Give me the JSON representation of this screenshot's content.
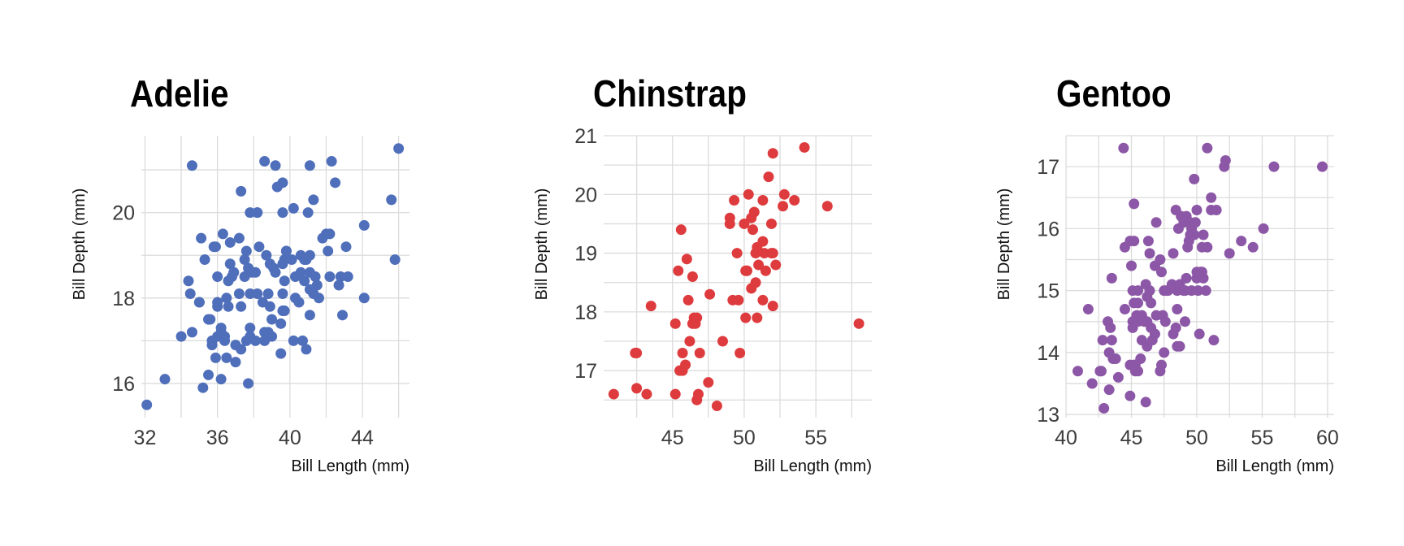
{
  "chart_data": [
    {
      "type": "scatter",
      "title": "Adelie",
      "xlabel": "Bill Length (mm)",
      "ylabel": "Bill Depth (mm)",
      "xlim": [
        31.8,
        46.6
      ],
      "ylim": [
        15.2,
        21.8
      ],
      "xticks": [
        32,
        36,
        40,
        44
      ],
      "yticks": [
        16,
        18,
        20
      ],
      "color": "#4f6fbb",
      "grid": true,
      "points": [
        [
          32.1,
          15.5
        ],
        [
          33.1,
          16.1
        ],
        [
          34.0,
          17.1
        ],
        [
          34.4,
          18.4
        ],
        [
          34.5,
          18.1
        ],
        [
          34.6,
          21.1
        ],
        [
          34.6,
          17.2
        ],
        [
          35.0,
          17.9
        ],
        [
          35.1,
          19.4
        ],
        [
          35.2,
          15.9
        ],
        [
          35.3,
          18.9
        ],
        [
          35.5,
          17.5
        ],
        [
          35.5,
          16.2
        ],
        [
          35.6,
          17.5
        ],
        [
          35.7,
          16.9
        ],
        [
          35.7,
          17.0
        ],
        [
          35.8,
          19.2
        ],
        [
          35.9,
          19.2
        ],
        [
          35.9,
          16.6
        ],
        [
          36.0,
          17.9
        ],
        [
          36.0,
          18.5
        ],
        [
          36.0,
          17.1
        ],
        [
          36.0,
          17.8
        ],
        [
          36.2,
          16.1
        ],
        [
          36.2,
          17.2
        ],
        [
          36.2,
          17.3
        ],
        [
          36.3,
          19.5
        ],
        [
          36.4,
          17.0
        ],
        [
          36.4,
          17.1
        ],
        [
          36.5,
          16.6
        ],
        [
          36.5,
          18.0
        ],
        [
          36.6,
          17.8
        ],
        [
          36.6,
          18.4
        ],
        [
          36.7,
          18.8
        ],
        [
          36.7,
          19.3
        ],
        [
          36.8,
          18.5
        ],
        [
          36.9,
          18.6
        ],
        [
          37.0,
          16.5
        ],
        [
          37.0,
          16.9
        ],
        [
          37.2,
          18.1
        ],
        [
          37.2,
          19.4
        ],
        [
          37.3,
          16.8
        ],
        [
          37.3,
          17.8
        ],
        [
          37.3,
          20.5
        ],
        [
          37.5,
          18.5
        ],
        [
          37.5,
          18.9
        ],
        [
          37.6,
          17.0
        ],
        [
          37.6,
          19.1
        ],
        [
          37.7,
          16.0
        ],
        [
          37.7,
          18.7
        ],
        [
          37.8,
          17.1
        ],
        [
          37.8,
          17.3
        ],
        [
          37.8,
          18.1
        ],
        [
          37.8,
          20.0
        ],
        [
          37.9,
          18.6
        ],
        [
          38.1,
          18.6
        ],
        [
          38.1,
          17.0
        ],
        [
          38.2,
          18.1
        ],
        [
          38.2,
          20.0
        ],
        [
          38.3,
          19.2
        ],
        [
          38.5,
          17.9
        ],
        [
          38.6,
          17.0
        ],
        [
          38.6,
          21.2
        ],
        [
          38.6,
          17.2
        ],
        [
          38.7,
          19.0
        ],
        [
          38.8,
          17.2
        ],
        [
          38.8,
          18.1
        ],
        [
          38.9,
          18.8
        ],
        [
          38.9,
          17.8
        ],
        [
          39.0,
          17.1
        ],
        [
          39.0,
          17.5
        ],
        [
          39.1,
          18.7
        ],
        [
          39.2,
          21.1
        ],
        [
          39.2,
          18.6
        ],
        [
          39.3,
          20.6
        ],
        [
          39.5,
          16.7
        ],
        [
          39.5,
          17.4
        ],
        [
          39.6,
          17.7
        ],
        [
          39.6,
          18.1
        ],
        [
          39.6,
          18.8
        ],
        [
          39.6,
          20.7
        ],
        [
          39.7,
          17.7
        ],
        [
          39.7,
          18.4
        ],
        [
          39.8,
          19.1
        ],
        [
          39.8,
          19.1
        ],
        [
          39.7,
          18.9
        ],
        [
          40.1,
          18.9
        ],
        [
          40.2,
          17.0
        ],
        [
          40.2,
          20.1
        ],
        [
          40.3,
          18.0
        ],
        [
          40.3,
          18.5
        ],
        [
          40.5,
          17.9
        ],
        [
          40.6,
          18.6
        ],
        [
          40.6,
          19.0
        ],
        [
          40.7,
          17.0
        ],
        [
          40.8,
          18.4
        ],
        [
          40.8,
          18.9
        ],
        [
          40.9,
          16.8
        ],
        [
          40.9,
          18.9
        ],
        [
          41.0,
          20.0
        ],
        [
          41.1,
          17.6
        ],
        [
          41.1,
          18.2
        ],
        [
          41.1,
          18.6
        ],
        [
          41.1,
          19.0
        ],
        [
          41.3,
          18.1
        ],
        [
          41.3,
          20.3
        ],
        [
          41.4,
          18.5
        ],
        [
          41.5,
          18.3
        ],
        [
          41.6,
          18.0
        ],
        [
          41.8,
          19.4
        ],
        [
          42.0,
          19.5
        ],
        [
          42.1,
          19.1
        ],
        [
          42.2,
          18.5
        ],
        [
          42.2,
          19.5
        ],
        [
          42.3,
          21.2
        ],
        [
          42.5,
          20.7
        ],
        [
          42.7,
          18.3
        ],
        [
          42.8,
          18.5
        ],
        [
          42.9,
          17.6
        ],
        [
          43.1,
          19.2
        ],
        [
          43.2,
          18.5
        ],
        [
          44.1,
          18.0
        ],
        [
          44.1,
          19.7
        ],
        [
          45.6,
          20.3
        ],
        [
          45.8,
          18.9
        ],
        [
          46.0,
          21.5
        ],
        [
          41.1,
          21.1
        ],
        [
          39.6,
          20.0
        ],
        [
          38.2,
          20.0
        ],
        [
          35.0,
          17.9
        ],
        [
          36.9,
          18.6
        ]
      ]
    },
    {
      "type": "scatter",
      "title": "Chinstrap",
      "xlabel": "Bill Length (mm)",
      "ylabel": "Bill Depth (mm)",
      "xlim": [
        40.2,
        58.9
      ],
      "ylim": [
        16.2,
        21.0
      ],
      "xticks": [
        45,
        50,
        55
      ],
      "yticks": [
        17,
        18,
        19,
        20,
        21
      ],
      "color": "#de3b3e",
      "grid": true,
      "points": [
        [
          40.9,
          16.6
        ],
        [
          42.4,
          17.3
        ],
        [
          42.5,
          16.7
        ],
        [
          42.5,
          17.3
        ],
        [
          43.2,
          16.6
        ],
        [
          43.5,
          18.1
        ],
        [
          45.2,
          17.8
        ],
        [
          45.2,
          16.6
        ],
        [
          45.4,
          18.7
        ],
        [
          45.5,
          17.0
        ],
        [
          45.6,
          19.4
        ],
        [
          45.7,
          17.0
        ],
        [
          45.7,
          17.3
        ],
        [
          45.9,
          17.1
        ],
        [
          46.0,
          18.9
        ],
        [
          46.1,
          18.2
        ],
        [
          46.2,
          17.5
        ],
        [
          46.4,
          18.6
        ],
        [
          46.4,
          17.8
        ],
        [
          46.5,
          17.9
        ],
        [
          46.6,
          17.8
        ],
        [
          46.7,
          17.9
        ],
        [
          46.7,
          16.5
        ],
        [
          46.8,
          16.6
        ],
        [
          46.9,
          17.3
        ],
        [
          47.5,
          16.8
        ],
        [
          47.6,
          18.3
        ],
        [
          48.1,
          16.4
        ],
        [
          48.5,
          17.5
        ],
        [
          49.0,
          19.5
        ],
        [
          49.0,
          19.6
        ],
        [
          49.2,
          18.2
        ],
        [
          49.3,
          19.9
        ],
        [
          49.5,
          19.0
        ],
        [
          49.6,
          18.2
        ],
        [
          49.7,
          17.3
        ],
        [
          50.0,
          19.5
        ],
        [
          50.1,
          17.9
        ],
        [
          50.2,
          18.7
        ],
        [
          50.3,
          20.0
        ],
        [
          50.5,
          18.4
        ],
        [
          50.5,
          19.6
        ],
        [
          50.6,
          19.4
        ],
        [
          50.7,
          19.7
        ],
        [
          50.8,
          18.5
        ],
        [
          50.8,
          19.0
        ],
        [
          50.9,
          17.9
        ],
        [
          50.9,
          19.1
        ],
        [
          51.0,
          18.8
        ],
        [
          51.3,
          19.2
        ],
        [
          51.3,
          18.2
        ],
        [
          51.3,
          19.9
        ],
        [
          51.4,
          19.0
        ],
        [
          51.5,
          18.7
        ],
        [
          51.7,
          20.3
        ],
        [
          51.9,
          19.5
        ],
        [
          52.0,
          18.1
        ],
        [
          52.0,
          19.0
        ],
        [
          52.0,
          20.7
        ],
        [
          52.2,
          18.8
        ],
        [
          52.7,
          19.8
        ],
        [
          52.8,
          20.0
        ],
        [
          53.5,
          19.9
        ],
        [
          54.2,
          20.8
        ],
        [
          55.8,
          19.8
        ],
        [
          58.0,
          17.8
        ],
        [
          50.1,
          18.7
        ],
        [
          51.9,
          19.0
        ]
      ]
    },
    {
      "type": "scatter",
      "title": "Gentoo",
      "xlabel": "Bill Length (mm)",
      "ylabel": "Bill Depth (mm)",
      "xlim": [
        40.0,
        60.5
      ],
      "ylim": [
        12.95,
        17.5
      ],
      "xticks": [
        40,
        45,
        50,
        55,
        60
      ],
      "yticks": [
        13,
        14,
        15,
        16,
        17
      ],
      "color": "#8c57a6",
      "grid": true,
      "points": [
        [
          40.9,
          13.7
        ],
        [
          41.7,
          14.7
        ],
        [
          42.0,
          13.5
        ],
        [
          42.6,
          13.7
        ],
        [
          42.7,
          13.7
        ],
        [
          42.8,
          14.2
        ],
        [
          42.9,
          13.1
        ],
        [
          43.2,
          14.5
        ],
        [
          43.3,
          14.0
        ],
        [
          43.3,
          13.4
        ],
        [
          43.4,
          14.4
        ],
        [
          43.5,
          14.2
        ],
        [
          43.5,
          15.2
        ],
        [
          43.6,
          13.9
        ],
        [
          43.8,
          13.9
        ],
        [
          44.0,
          13.6
        ],
        [
          44.4,
          17.3
        ],
        [
          44.5,
          14.7
        ],
        [
          44.5,
          15.7
        ],
        [
          44.9,
          13.3
        ],
        [
          44.9,
          13.8
        ],
        [
          45.0,
          15.4
        ],
        [
          45.1,
          14.5
        ],
        [
          45.1,
          14.4
        ],
        [
          45.2,
          13.8
        ],
        [
          45.2,
          14.8
        ],
        [
          45.2,
          15.8
        ],
        [
          45.2,
          16.4
        ],
        [
          45.3,
          13.7
        ],
        [
          45.3,
          13.8
        ],
        [
          45.4,
          14.6
        ],
        [
          45.5,
          13.7
        ],
        [
          45.5,
          14.5
        ],
        [
          45.5,
          15.0
        ],
        [
          45.7,
          13.9
        ],
        [
          45.8,
          14.2
        ],
        [
          45.8,
          14.6
        ],
        [
          46.1,
          13.2
        ],
        [
          46.1,
          15.1
        ],
        [
          46.2,
          14.1
        ],
        [
          46.2,
          14.5
        ],
        [
          46.2,
          14.9
        ],
        [
          46.3,
          15.8
        ],
        [
          46.4,
          15.0
        ],
        [
          46.5,
          14.4
        ],
        [
          46.5,
          14.8
        ],
        [
          46.6,
          14.2
        ],
        [
          46.8,
          14.3
        ],
        [
          46.8,
          15.4
        ],
        [
          46.9,
          14.6
        ],
        [
          46.9,
          16.1
        ],
        [
          47.2,
          13.7
        ],
        [
          47.2,
          15.5
        ],
        [
          47.3,
          13.8
        ],
        [
          47.4,
          14.6
        ],
        [
          47.5,
          14.0
        ],
        [
          47.5,
          15.0
        ],
        [
          47.6,
          14.5
        ],
        [
          47.7,
          15.0
        ],
        [
          47.8,
          15.0
        ],
        [
          48.1,
          15.1
        ],
        [
          48.2,
          14.3
        ],
        [
          48.2,
          15.6
        ],
        [
          48.4,
          14.4
        ],
        [
          48.4,
          16.3
        ],
        [
          48.5,
          14.1
        ],
        [
          48.5,
          15.0
        ],
        [
          48.6,
          16.0
        ],
        [
          48.7,
          14.1
        ],
        [
          48.7,
          15.1
        ],
        [
          48.8,
          16.2
        ],
        [
          49.0,
          15.0
        ],
        [
          49.0,
          16.1
        ],
        [
          49.1,
          14.5
        ],
        [
          49.1,
          15.0
        ],
        [
          49.2,
          15.2
        ],
        [
          49.3,
          15.7
        ],
        [
          49.4,
          15.8
        ],
        [
          49.5,
          15.9
        ],
        [
          49.5,
          16.1
        ],
        [
          49.6,
          15.0
        ],
        [
          49.6,
          16.0
        ],
        [
          49.8,
          15.9
        ],
        [
          49.8,
          16.8
        ],
        [
          49.9,
          16.1
        ],
        [
          50.0,
          15.2
        ],
        [
          50.0,
          15.3
        ],
        [
          50.0,
          16.3
        ],
        [
          50.1,
          15.0
        ],
        [
          50.2,
          14.3
        ],
        [
          50.4,
          15.3
        ],
        [
          50.4,
          15.7
        ],
        [
          50.5,
          15.2
        ],
        [
          50.5,
          15.9
        ],
        [
          50.7,
          15.0
        ],
        [
          50.8,
          15.7
        ],
        [
          50.8,
          17.3
        ],
        [
          51.1,
          16.3
        ],
        [
          51.1,
          16.5
        ],
        [
          51.3,
          14.2
        ],
        [
          51.5,
          16.3
        ],
        [
          52.1,
          17.0
        ],
        [
          52.2,
          17.1
        ],
        [
          52.5,
          15.6
        ],
        [
          53.4,
          15.8
        ],
        [
          54.3,
          15.7
        ],
        [
          55.1,
          16.0
        ],
        [
          55.9,
          17.0
        ],
        [
          59.6,
          17.0
        ],
        [
          44.9,
          15.8
        ],
        [
          45.5,
          14.8
        ],
        [
          46.4,
          15.6
        ],
        [
          47.3,
          15.3
        ],
        [
          48.5,
          14.7
        ],
        [
          49.2,
          16.2
        ],
        [
          50.3,
          15.3
        ],
        [
          45.1,
          15.0
        ],
        [
          46.0,
          14.5
        ]
      ]
    }
  ]
}
